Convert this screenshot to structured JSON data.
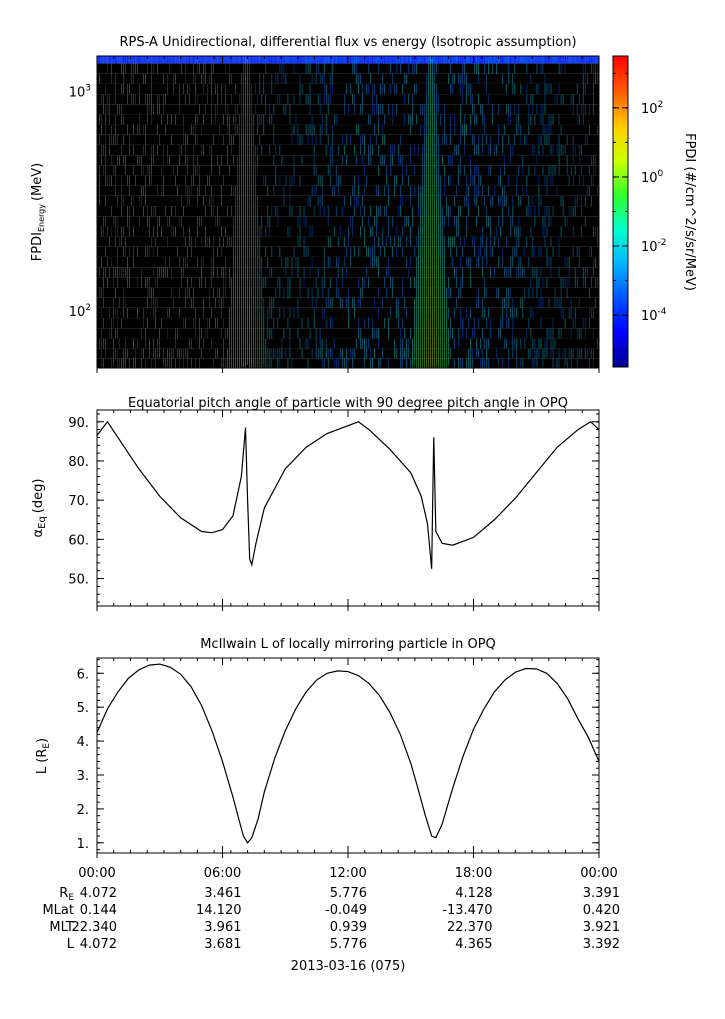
{
  "chart_data": [
    {
      "type": "heatmap",
      "title": "RPS-A Unidirectional, differential flux vs energy (Isotropic assumption)",
      "ylabel_main": "FPDI",
      "ylabel_sub": "Energy",
      "ylabel_unit": "(MeV)",
      "yscale": "log",
      "ylim": [
        55,
        1450
      ],
      "yticks": [
        {
          "value": 100,
          "base": "10",
          "exp": "2"
        },
        {
          "value": 1000,
          "base": "10",
          "exp": "3"
        }
      ],
      "energy_channels_mev": [
        58,
        64,
        71,
        79,
        88,
        98,
        109,
        121,
        135,
        150,
        167,
        186,
        207,
        230,
        256,
        285,
        317,
        353,
        393,
        437,
        486,
        541,
        602,
        670,
        745,
        829,
        922,
        1026,
        1141,
        1270,
        1420
      ],
      "colorbar": {
        "label": "FPDI (#/cm^2/s/sr/MeV)",
        "scale": "log",
        "range": [
          -5.5,
          3.5
        ],
        "ticks": [
          {
            "value": 2,
            "base": "10",
            "exp": "2"
          },
          {
            "value": 0,
            "base": "10",
            "exp": "0"
          },
          {
            "value": -2,
            "base": "10",
            "exp": "-2"
          },
          {
            "value": -4,
            "base": "10",
            "exp": "-4"
          }
        ]
      },
      "features": [
        {
          "center_hour": 7.2,
          "peak_log_flux": 0.8,
          "description": "radiation belt crossing"
        },
        {
          "center_hour": 16.0,
          "peak_log_flux": 0.8,
          "description": "radiation belt crossing"
        }
      ]
    },
    {
      "type": "line",
      "title": "Equatorial pitch angle of particle with 90 degree pitch angle in OPQ",
      "ylabel_main": "α",
      "ylabel_sub": "Eq",
      "ylabel_unit": "(deg)",
      "ylim": [
        43,
        93
      ],
      "yticks": [
        "50.",
        "60.",
        "70.",
        "80.",
        "90."
      ],
      "series": [
        {
          "x_hours": [
            0,
            0.5,
            1,
            2,
            3,
            4,
            5,
            5.5,
            6,
            6.5,
            6.9,
            7.1,
            7.2,
            7.3,
            7.4,
            7.6,
            8,
            9,
            10,
            11,
            12,
            12.5,
            13,
            14,
            15,
            15.5,
            15.8,
            16.0,
            16.05,
            16.1,
            16.2,
            16.5,
            17,
            18,
            19,
            20,
            21,
            22,
            23,
            23.6,
            24
          ],
          "y_deg": [
            86.5,
            90,
            86,
            78,
            71,
            65.5,
            62,
            61.7,
            62.5,
            66,
            76,
            88.5,
            70,
            55,
            53.5,
            59,
            68,
            78,
            83.5,
            87,
            89,
            90,
            88,
            83,
            77,
            71,
            64,
            52.5,
            70,
            86,
            62,
            59,
            58.5,
            60.5,
            65,
            70.5,
            77,
            83.5,
            88,
            90,
            88
          ]
        }
      ]
    },
    {
      "type": "line",
      "title": "McIlwain L of locally mirroring particle in OPQ",
      "ylabel_main": "L (R",
      "ylabel_sub": "E",
      "ylabel_unit": ")",
      "ylim": [
        0.7,
        6.45
      ],
      "yticks": [
        "1.",
        "2.",
        "3.",
        "4.",
        "5.",
        "6."
      ],
      "series": [
        {
          "x_hours": [
            0,
            0.5,
            1,
            1.5,
            2,
            2.5,
            3,
            3.5,
            4,
            4.5,
            5,
            5.5,
            6,
            6.5,
            6.8,
            7.0,
            7.2,
            7.4,
            7.7,
            8,
            8.5,
            9,
            9.5,
            10,
            10.5,
            11,
            11.5,
            12,
            12.5,
            13,
            13.5,
            14,
            14.5,
            15,
            15.3,
            15.7,
            16.0,
            16.2,
            16.5,
            17,
            17.5,
            18,
            18.5,
            19,
            19.5,
            20,
            20.5,
            21,
            21.5,
            22,
            22.5,
            23,
            23.5,
            24
          ],
          "y_re": [
            4.25,
            4.95,
            5.45,
            5.85,
            6.1,
            6.24,
            6.27,
            6.18,
            5.97,
            5.6,
            5.05,
            4.3,
            3.4,
            2.35,
            1.65,
            1.2,
            1.0,
            1.15,
            1.7,
            2.5,
            3.5,
            4.3,
            4.95,
            5.45,
            5.8,
            6.0,
            6.07,
            6.05,
            5.93,
            5.7,
            5.35,
            4.85,
            4.2,
            3.35,
            2.7,
            1.8,
            1.2,
            1.15,
            1.55,
            2.6,
            3.55,
            4.35,
            4.95,
            5.45,
            5.8,
            6.03,
            6.14,
            6.13,
            6.0,
            5.7,
            5.25,
            4.65,
            4.1,
            3.4
          ]
        }
      ]
    }
  ],
  "x_axis": {
    "range_hours": [
      0,
      24
    ],
    "tick_labels": [
      "00:00",
      "06:00",
      "12:00",
      "18:00",
      "00:00"
    ],
    "tick_hours": [
      0,
      6,
      12,
      18,
      24
    ],
    "date_label": "2013-03-16 (075)"
  },
  "ephemeris": {
    "rows": [
      {
        "label_main": "R",
        "label_sub": "E",
        "values": [
          "4.072",
          "3.461",
          "5.776",
          "4.128",
          "3.391"
        ]
      },
      {
        "label_main": "MLat",
        "label_sub": "",
        "values": [
          "0.144",
          "14.120",
          "-0.049",
          "-13.470",
          "0.420"
        ]
      },
      {
        "label_main": "MLT",
        "label_sub": "",
        "values": [
          "22.340",
          "3.961",
          "0.939",
          "22.370",
          "3.921"
        ]
      },
      {
        "label_main": "L",
        "label_sub": "",
        "values": [
          "4.072",
          "3.681",
          "5.776",
          "4.365",
          "3.392"
        ]
      }
    ]
  },
  "colors": {
    "line": "#000000",
    "background": "#ffffff",
    "flux_background": "#000000"
  }
}
